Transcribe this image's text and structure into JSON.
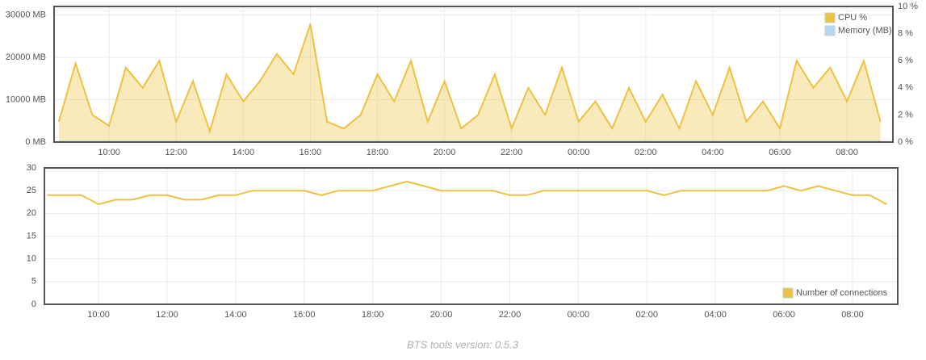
{
  "chart_data": [
    {
      "type": "area",
      "grid": true,
      "legend": "top-right",
      "x": [
        8.5,
        9,
        9.5,
        10,
        10.5,
        11,
        11.5,
        12,
        12.5,
        13,
        13.5,
        14,
        14.5,
        15,
        15.5,
        16,
        16.5,
        17,
        17.5,
        18,
        18.5,
        19,
        19.5,
        20,
        20.5,
        21,
        21.5,
        22,
        22.5,
        23,
        23.5,
        24,
        24.5,
        25,
        25.5,
        26,
        26.5,
        27,
        27.5,
        28,
        28.5,
        29,
        29.5,
        30,
        30.5,
        31,
        31.5,
        32,
        32.5,
        33
      ],
      "xlim": [
        8.36,
        33.37
      ],
      "xticks": [
        {
          "value": 10,
          "label": "10:00"
        },
        {
          "value": 12,
          "label": "12:00"
        },
        {
          "value": 14,
          "label": "14:00"
        },
        {
          "value": 16,
          "label": "16:00"
        },
        {
          "value": 18,
          "label": "18:00"
        },
        {
          "value": 20,
          "label": "20:00"
        },
        {
          "value": 22,
          "label": "22:00"
        },
        {
          "value": 24,
          "label": "00:00"
        },
        {
          "value": 26,
          "label": "02:00"
        },
        {
          "value": 28,
          "label": "04:00"
        },
        {
          "value": 30,
          "label": "06:00"
        },
        {
          "value": 32,
          "label": "08:00"
        }
      ],
      "ylim": [
        0,
        32000
      ],
      "yticks": [
        {
          "value": 0,
          "label": "0 MB"
        },
        {
          "value": 10000,
          "label": "10000 MB"
        },
        {
          "value": 20000,
          "label": "20000 MB"
        },
        {
          "value": 30000,
          "label": "30000 MB"
        }
      ],
      "y2lim": [
        0,
        10
      ],
      "y2ticks": [
        {
          "value": 0,
          "label": "0 %"
        },
        {
          "value": 2,
          "label": "2 %"
        },
        {
          "value": 4,
          "label": "4 %"
        },
        {
          "value": 6,
          "label": "6 %"
        },
        {
          "value": 8,
          "label": "8 %"
        },
        {
          "value": 10,
          "label": "10 %"
        }
      ],
      "series": [
        {
          "name": "CPU %",
          "color": "#edc240",
          "axis": "y2",
          "values": [
            1.5,
            5.8,
            2,
            1.2,
            5.5,
            4,
            6,
            1.5,
            4.5,
            0.8,
            5,
            3,
            4.5,
            6.5,
            5,
            8.7,
            1.5,
            1,
            2,
            5,
            3,
            6,
            1.5,
            4.5,
            1,
            2,
            5,
            1,
            4,
            2,
            5.5,
            1.5,
            3,
            1,
            4,
            1.5,
            3.5,
            1,
            4.5,
            2,
            5.5,
            1.5,
            3,
            1,
            6,
            4,
            5.5,
            3,
            6,
            1.5
          ]
        },
        {
          "name": "Memory (MB)",
          "color": "#afd8f8",
          "values": [
            150,
            150,
            150,
            150,
            150,
            150,
            150,
            150,
            150,
            150,
            150,
            150,
            150,
            150,
            150,
            150,
            150,
            150,
            150,
            150,
            150,
            150,
            150,
            150,
            150,
            150,
            150,
            150,
            150,
            150,
            150,
            150,
            150,
            150,
            150,
            150,
            150,
            150,
            150,
            150,
            150,
            150,
            150,
            150,
            150,
            150,
            150,
            150,
            150,
            150
          ]
        }
      ]
    },
    {
      "type": "line",
      "grid": true,
      "legend": "bottom-right",
      "x": [
        8.5,
        9,
        9.5,
        10,
        10.5,
        11,
        11.5,
        12,
        12.5,
        13,
        13.5,
        14,
        14.5,
        15,
        15.5,
        16,
        16.5,
        17,
        17.5,
        18,
        18.5,
        19,
        19.5,
        20,
        20.5,
        21,
        21.5,
        22,
        22.5,
        23,
        23.5,
        24,
        24.5,
        25,
        25.5,
        26,
        26.5,
        27,
        27.5,
        28,
        28.5,
        29,
        29.5,
        30,
        30.5,
        31,
        31.5,
        32,
        32.5,
        33
      ],
      "xlim": [
        8.42,
        33.32
      ],
      "xticks": [
        {
          "value": 10,
          "label": "10:00"
        },
        {
          "value": 12,
          "label": "12:00"
        },
        {
          "value": 14,
          "label": "14:00"
        },
        {
          "value": 16,
          "label": "16:00"
        },
        {
          "value": 18,
          "label": "18:00"
        },
        {
          "value": 20,
          "label": "20:00"
        },
        {
          "value": 22,
          "label": "22:00"
        },
        {
          "value": 24,
          "label": "00:00"
        },
        {
          "value": 26,
          "label": "02:00"
        },
        {
          "value": 28,
          "label": "04:00"
        },
        {
          "value": 30,
          "label": "06:00"
        },
        {
          "value": 32,
          "label": "08:00"
        }
      ],
      "ylim": [
        0,
        30
      ],
      "yticks": [
        0,
        5,
        10,
        15,
        20,
        25,
        30
      ],
      "series": [
        {
          "name": "Number of connections",
          "color": "#edc240",
          "values": [
            24,
            24,
            24,
            22,
            23,
            23,
            24,
            24,
            23,
            23,
            24,
            24,
            25,
            25,
            25,
            25,
            24,
            25,
            25,
            25,
            26,
            27,
            26,
            25,
            25,
            25,
            25,
            24,
            24,
            25,
            25,
            25,
            25,
            25,
            25,
            25,
            24,
            25,
            25,
            25,
            25,
            25,
            25,
            26,
            25,
            26,
            25,
            24,
            24,
            22
          ]
        }
      ]
    }
  ],
  "footer": "BTS tools version: 0.5.3"
}
